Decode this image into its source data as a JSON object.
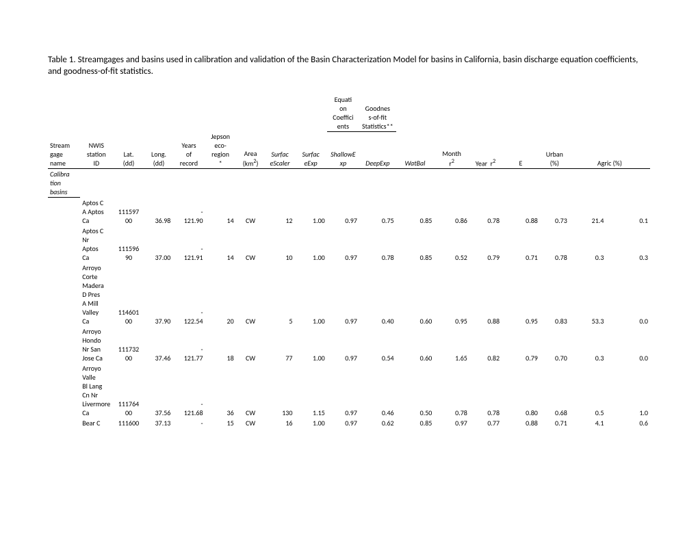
{
  "title": "Table 1. Streamgages and basins used in calibration and validation of the Basin Characterization Model for basins in California, basin discharge equation coefficients, and goodness-of-fit statistics.",
  "group_headers": {
    "eq": "Equation Coefficients",
    "gof": "Goodness-of-fit Statistics**"
  },
  "columns": [
    "Stream gage name",
    "NWIS station ID",
    "Lat. (dd)",
    "Long. (dd)",
    "Years of record",
    "Jepson eco-region *",
    "Area (km²)",
    "SurfaceScaler",
    "SurfaceExp",
    "ShallowExp",
    "DeepExp",
    "WatBal",
    "Month r²",
    "Year r²",
    "E",
    "Urban (%)",
    "Agric (%)"
  ],
  "section_label": "Calibration basins",
  "rows": [
    {
      "name": "Aptos C A Aptos Ca",
      "id": "11159700",
      "lat": "36.98",
      "lon": "-121.90",
      "yr": "14",
      "eco": "CW",
      "area": "12",
      "ssc": "1.00",
      "sexp": "0.97",
      "shexp": "0.75",
      "dexp": "0.85",
      "wb": "0.86",
      "mr2": "0.78",
      "yr2": "0.88",
      "e": "0.73",
      "urb": "21.4",
      "ag": "0.1"
    },
    {
      "name": "Aptos C Nr Aptos Ca",
      "id": "11159690",
      "lat": "37.00",
      "lon": "-121.91",
      "yr": "14",
      "eco": "CW",
      "area": "10",
      "ssc": "1.00",
      "sexp": "0.97",
      "shexp": "0.78",
      "dexp": "0.85",
      "wb": "0.52",
      "mr2": "0.79",
      "yr2": "0.71",
      "e": "0.78",
      "urb": "0.3",
      "ag": "0.3"
    },
    {
      "name": "Arroyo Corte Madera D Pres A Mill Valley Ca",
      "id": "11460100",
      "lat": "37.90",
      "lon": "-122.54",
      "yr": "20",
      "eco": "CW",
      "area": "5",
      "ssc": "1.00",
      "sexp": "0.97",
      "shexp": "0.40",
      "dexp": "0.60",
      "wb": "0.95",
      "mr2": "0.88",
      "yr2": "0.95",
      "e": "0.83",
      "urb": "53.3",
      "ag": "0.0"
    },
    {
      "name": "Arroyo Hondo Nr San Jose Ca",
      "id": "11173200",
      "lat": "37.46",
      "lon": "-121.77",
      "yr": "18",
      "eco": "CW",
      "area": "77",
      "ssc": "1.00",
      "sexp": "0.97",
      "shexp": "0.54",
      "dexp": "0.60",
      "wb": "1.65",
      "mr2": "0.82",
      "yr2": "0.79",
      "e": "0.70",
      "urb": "0.3",
      "ag": "0.0"
    },
    {
      "name": "Arroyo Valle Bl Lang Cn Nr Livermore Ca",
      "id": "11176400",
      "lat": "37.56",
      "lon": "-121.68",
      "yr": "36",
      "eco": "CW",
      "area": "130",
      "ssc": "1.15",
      "sexp": "0.97",
      "shexp": "0.46",
      "dexp": "0.50",
      "wb": "0.78",
      "mr2": "0.78",
      "yr2": "0.80",
      "e": "0.68",
      "urb": "0.5",
      "ag": "1.0"
    },
    {
      "name": "Bear C",
      "id": "111600",
      "lat": "37.13",
      "lon": "-",
      "yr": "15",
      "eco": "CW",
      "area": "16",
      "ssc": "1.00",
      "sexp": "0.97",
      "shexp": "0.62",
      "dexp": "0.85",
      "wb": "0.97",
      "mr2": "0.77",
      "yr2": "0.88",
      "e": "0.71",
      "urb": "4.1",
      "ag": "0.6"
    }
  ]
}
